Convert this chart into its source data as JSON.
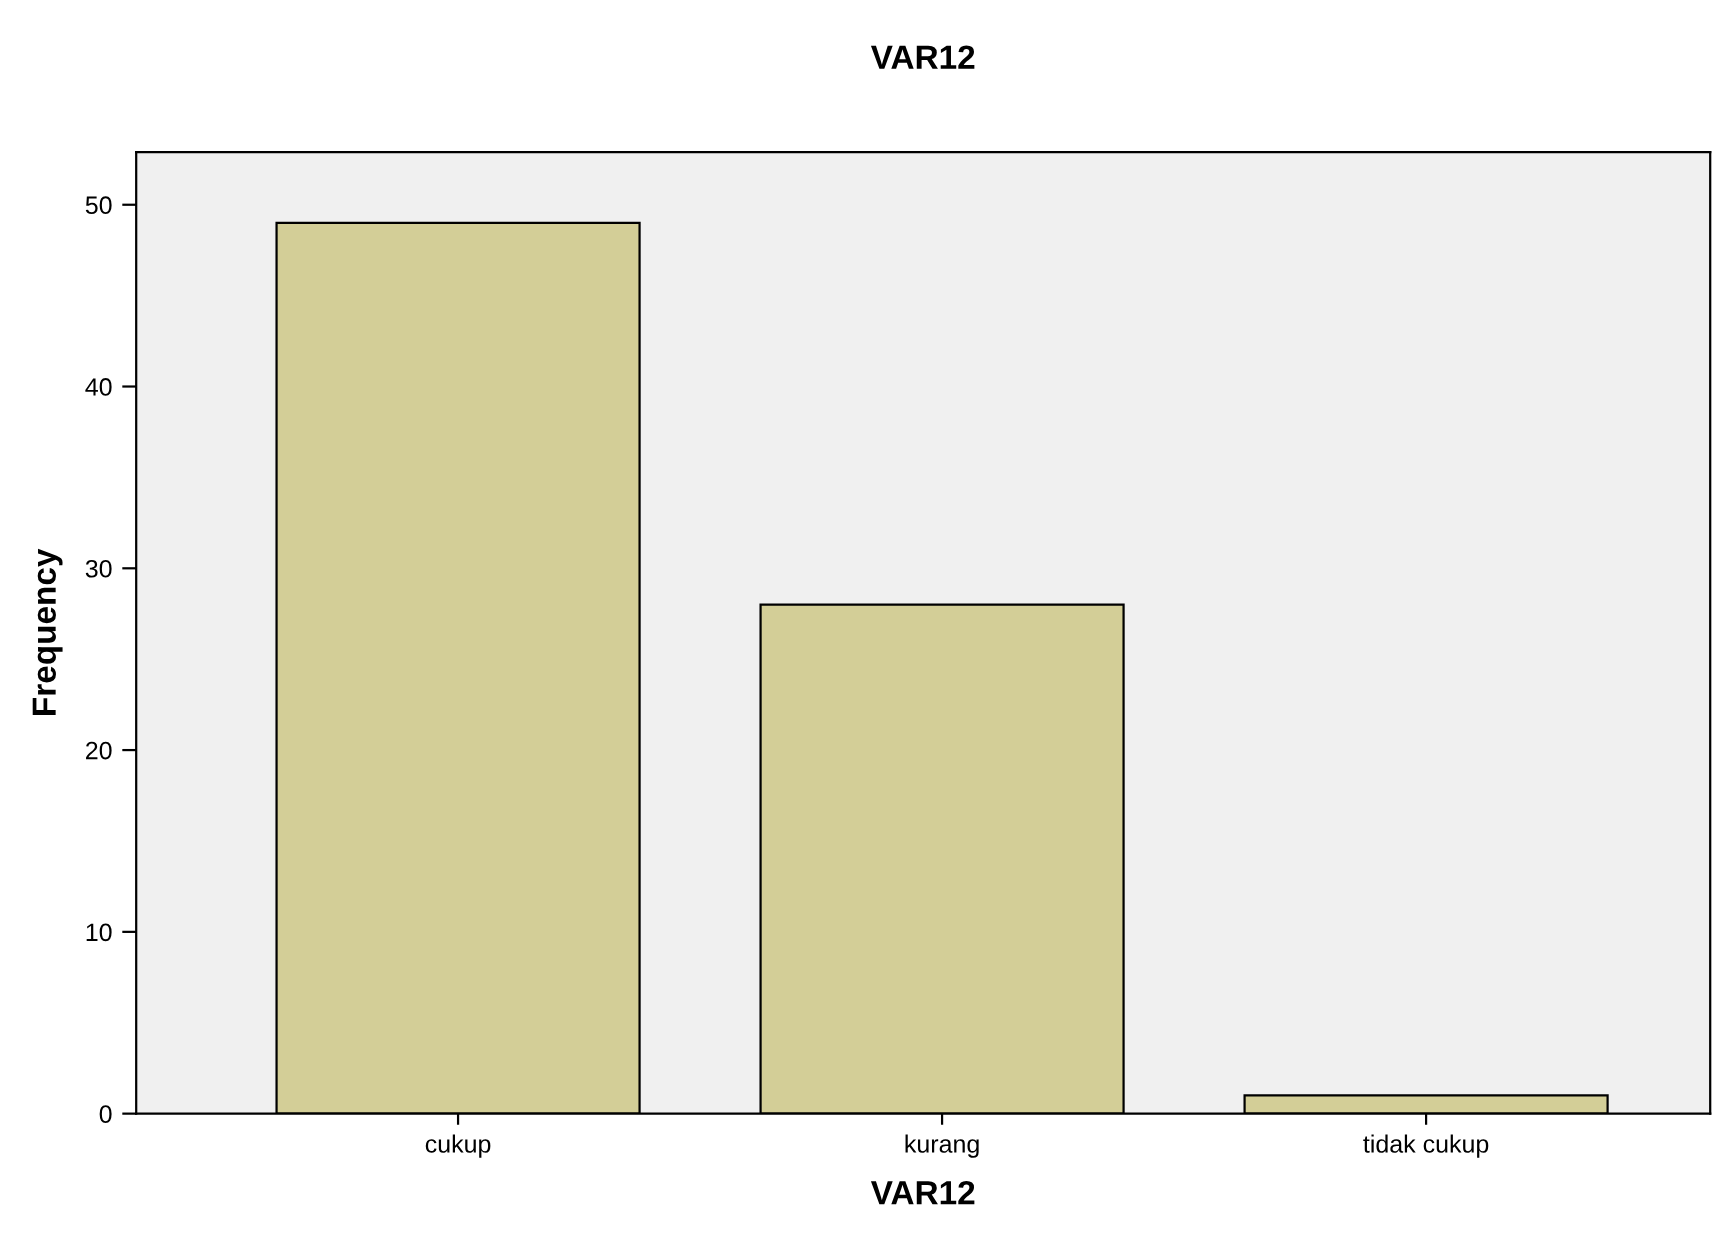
{
  "chart_data": {
    "type": "bar",
    "title": "VAR12",
    "xlabel": "VAR12",
    "ylabel": "Frequency",
    "categories": [
      "cukup",
      "kurang",
      "tidak cukup"
    ],
    "values": [
      49,
      28,
      1
    ],
    "color": "#d3ce97",
    "ylim": [
      0,
      52.9
    ],
    "yticks": [
      0,
      10,
      20,
      30,
      40,
      50
    ],
    "grid": false
  }
}
